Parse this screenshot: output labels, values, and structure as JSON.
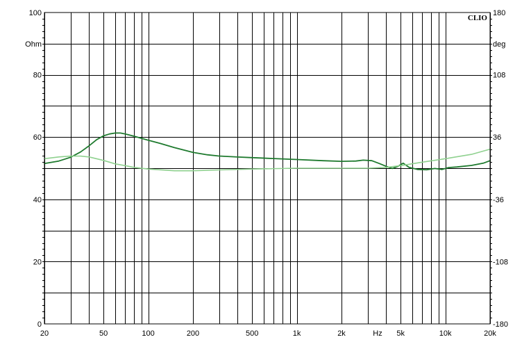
{
  "chart_data": {
    "type": "line",
    "brand": "CLIO",
    "xlabel": "Hz",
    "x_scale": "log",
    "xlim": [
      20,
      20000
    ],
    "x_ticks": [
      {
        "value": 20,
        "label": "20"
      },
      {
        "value": 50,
        "label": "50"
      },
      {
        "value": 100,
        "label": "100"
      },
      {
        "value": 200,
        "label": "200"
      },
      {
        "value": 500,
        "label": "500"
      },
      {
        "value": 1000,
        "label": "1k"
      },
      {
        "value": 2000,
        "label": "2k"
      },
      {
        "value": 5000,
        "label": "5k"
      },
      {
        "value": 10000,
        "label": "10k"
      },
      {
        "value": 20000,
        "label": "20k"
      }
    ],
    "x_unit_label": "Hz",
    "y_left": {
      "unit_label": "Ohm",
      "ylim": [
        0,
        100
      ],
      "ticks": [
        {
          "value": 100,
          "label": "100"
        },
        {
          "value": 80,
          "label": "80"
        },
        {
          "value": 60,
          "label": "60"
        },
        {
          "value": 40,
          "label": "40"
        },
        {
          "value": 20,
          "label": "20"
        },
        {
          "value": 0,
          "label": "0"
        }
      ]
    },
    "y_right": {
      "unit_label": "deg",
      "ylim": [
        -180,
        180
      ],
      "ticks": [
        {
          "value": 180,
          "label": "180"
        },
        {
          "value": 108,
          "label": "108"
        },
        {
          "value": 36,
          "label": "36"
        },
        {
          "value": -36,
          "label": "-36"
        },
        {
          "value": -108,
          "label": "-108"
        },
        {
          "value": -180,
          "label": "-180"
        }
      ]
    },
    "grid": true,
    "series": [
      {
        "axis": "left",
        "color": "#1e7a2e",
        "x": [
          20,
          25,
          30,
          35,
          40,
          45,
          50,
          55,
          60,
          65,
          70,
          80,
          90,
          100,
          120,
          150,
          200,
          250,
          300,
          400,
          500,
          700,
          1000,
          1500,
          2000,
          2500,
          2800,
          3200,
          3600,
          4000,
          4400,
          4800,
          5200,
          5700,
          6500,
          7500,
          8500,
          9500,
          10500,
          12000,
          15000,
          18000,
          20000
        ],
        "y": [
          51.5,
          52.3,
          53.5,
          55.2,
          57.2,
          59.2,
          60.4,
          61.0,
          61.3,
          61.3,
          61.0,
          60.3,
          59.6,
          59.0,
          58.0,
          56.6,
          55.1,
          54.3,
          53.9,
          53.6,
          53.4,
          53.1,
          52.8,
          52.4,
          52.2,
          52.3,
          52.6,
          52.4,
          51.5,
          50.6,
          49.9,
          50.6,
          51.6,
          50.3,
          49.6,
          49.5,
          49.9,
          49.6,
          50.2,
          50.4,
          50.9,
          51.6,
          52.4
        ]
      },
      {
        "axis": "right",
        "color": "#8fd18f",
        "x": [
          20,
          25,
          30,
          35,
          40,
          50,
          60,
          70,
          80,
          100,
          150,
          200,
          300,
          500,
          1000,
          2000,
          3000,
          4000,
          5000,
          7000,
          10000,
          15000,
          20000
        ],
        "y": [
          11,
          13,
          14,
          14,
          13,
          9,
          5,
          3,
          1,
          -1,
          -3,
          -3,
          -2,
          -1,
          0,
          0,
          0,
          1,
          3,
          7,
          11,
          16,
          22
        ]
      }
    ]
  }
}
